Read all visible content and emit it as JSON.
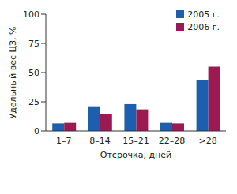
{
  "chart_data": {
    "type": "bar",
    "categories": [
      "1–7",
      "8–14",
      "15–21",
      "22–28",
      ">28"
    ],
    "series": [
      {
        "name": "2005 г.",
        "color": "#1c5fae",
        "values": [
          6.5,
          20.5,
          23,
          7,
          44
        ]
      },
      {
        "name": "2006 г.",
        "color": "#9c1a52",
        "values": [
          7,
          14.5,
          18.5,
          6.5,
          55
        ]
      }
    ],
    "x_label": "Отсрочка, дней",
    "y_label": "Удельный вес ЦЗ, %",
    "ylim": [
      0,
      100
    ],
    "yticks": [
      0,
      25,
      50,
      75,
      100
    ],
    "grid": false,
    "legend": "upper right"
  }
}
